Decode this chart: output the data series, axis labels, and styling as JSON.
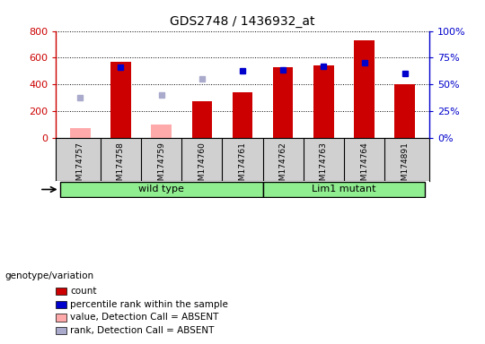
{
  "title": "GDS2748 / 1436932_at",
  "samples": [
    "GSM174757",
    "GSM174758",
    "GSM174759",
    "GSM174760",
    "GSM174761",
    "GSM174762",
    "GSM174763",
    "GSM174764",
    "GSM174891"
  ],
  "count_values": [
    null,
    570,
    null,
    275,
    345,
    530,
    545,
    730,
    405
  ],
  "count_absent": [
    75,
    null,
    100,
    null,
    null,
    null,
    null,
    null,
    null
  ],
  "percentile_rank": [
    null,
    66.25,
    null,
    null,
    62.5,
    63.75,
    66.875,
    70.0,
    60.0
  ],
  "rank_absent": [
    37.5,
    null,
    40.0,
    55.625,
    null,
    null,
    null,
    null,
    null
  ],
  "ylim_left": [
    0,
    800
  ],
  "ylim_right": [
    0,
    100
  ],
  "y_ticks_left": [
    0,
    200,
    400,
    600,
    800
  ],
  "y_ticks_right": [
    0,
    25,
    50,
    75,
    100
  ],
  "wild_type_indices": [
    0,
    1,
    2,
    3,
    4
  ],
  "lim1_mutant_indices": [
    5,
    6,
    7,
    8
  ],
  "wild_type_label": "wild type",
  "lim1_mutant_label": "Lim1 mutant",
  "genotype_label": "genotype/variation",
  "bar_color_count": "#cc0000",
  "bar_color_absent": "#ffaaaa",
  "dot_color_rank": "#0000cc",
  "dot_color_rank_absent": "#aaaacc",
  "bg_color": "#ffffff",
  "plot_bg_color": "#ffffff",
  "label_bg_color": "#d0d0d0",
  "green_color": "#90ee90",
  "title_color": "#000000",
  "left_axis_color": "#cc0000",
  "right_axis_color": "#0000cc",
  "legend_labels": [
    "count",
    "percentile rank within the sample",
    "value, Detection Call = ABSENT",
    "rank, Detection Call = ABSENT"
  ],
  "legend_colors": [
    "#cc0000",
    "#0000cc",
    "#ffaaaa",
    "#aaaacc"
  ]
}
